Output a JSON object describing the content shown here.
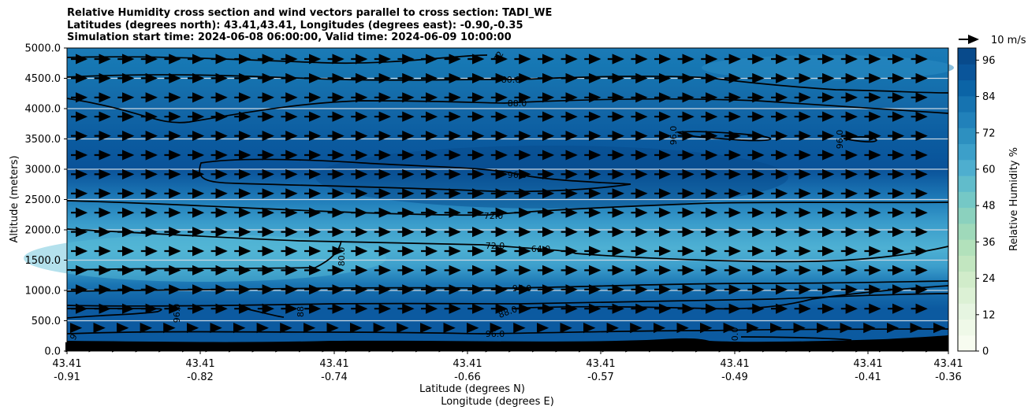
{
  "chart_data": {
    "type": "heatmap",
    "title_lines": [
      "Relative Humidity cross section and wind vectors parallel to cross section: TADI_WE",
      "Latitudes (degrees north): 43.41,43.41, Longitudes (degrees east): -0.90,-0.35",
      "Simulation start time: 2024-06-08 06:00:00, Valid time: 2024-06-09 10:00:00"
    ],
    "ylabel": "Altitude (meters)",
    "xlabel_lines": [
      "Latitude (degrees N)",
      "Longitude (degrees E)"
    ],
    "ylim": [
      0,
      5000
    ],
    "yticks": [
      "0.0",
      "500.0",
      "1000.0",
      "1500.0",
      "2000.0",
      "2500.0",
      "3000.0",
      "3500.0",
      "4000.0",
      "4500.0",
      "5000.0"
    ],
    "xticks": [
      {
        "lat": "43.41",
        "lon": "-0.91"
      },
      {
        "lat": "43.41",
        "lon": "-0.82"
      },
      {
        "lat": "43.41",
        "lon": "-0.74"
      },
      {
        "lat": "43.41",
        "lon": "-0.66"
      },
      {
        "lat": "43.41",
        "lon": "-0.57"
      },
      {
        "lat": "43.41",
        "lon": "-0.49"
      },
      {
        "lat": "43.41",
        "lon": "-0.41"
      },
      {
        "lat": "43.41",
        "lon": "-0.36"
      }
    ],
    "colorbar": {
      "label": "Relative Humidity %",
      "range": [
        0,
        100
      ],
      "ticks": [
        "0",
        "12",
        "24",
        "36",
        "48",
        "60",
        "72",
        "84",
        "96"
      ],
      "colors": [
        "#f7fcf0",
        "#eff9e8",
        "#e6f5e1",
        "#dcf1d5",
        "#d1ecca",
        "#c2e6c0",
        "#b2e1bb",
        "#9fd9ba",
        "#8bd1be",
        "#75c8c6",
        "#61bccb",
        "#4eaecf",
        "#3c9fc9",
        "#2d90c0",
        "#2181ba",
        "#1673b0",
        "#0b64a6",
        "#0a559a",
        "#084a8b"
      ]
    },
    "grid": "horizontal",
    "wind_quiver_key": "10 m/s",
    "contour_levels": [
      72,
      80,
      88,
      96
    ],
    "contour_labels": [
      "72",
      "80.0",
      "88.0",
      "96.0",
      "72.0",
      "72.0",
      "64.0",
      "80.0",
      "96.0",
      "88.0",
      "96.0",
      "96.0",
      "96.0",
      "96.0",
      "88",
      "9",
      "80.0"
    ],
    "rh_profile": [
      {
        "altitude": 250,
        "rh": 93
      },
      {
        "altitude": 750,
        "rh": 97
      },
      {
        "altitude": 1000,
        "rh": 84
      },
      {
        "altitude": 1300,
        "rh": 66
      },
      {
        "altitude": 1500,
        "rh": 64
      },
      {
        "altitude": 1750,
        "rh": 72
      },
      {
        "altitude": 2000,
        "rh": 82
      },
      {
        "altitude": 2300,
        "rh": 90
      },
      {
        "altitude": 2800,
        "rh": 96
      },
      {
        "altitude": 3500,
        "rh": 93
      },
      {
        "altitude": 4000,
        "rh": 88
      },
      {
        "altitude": 4500,
        "rh": 82
      },
      {
        "altitude": 4800,
        "rh": 76
      }
    ]
  }
}
